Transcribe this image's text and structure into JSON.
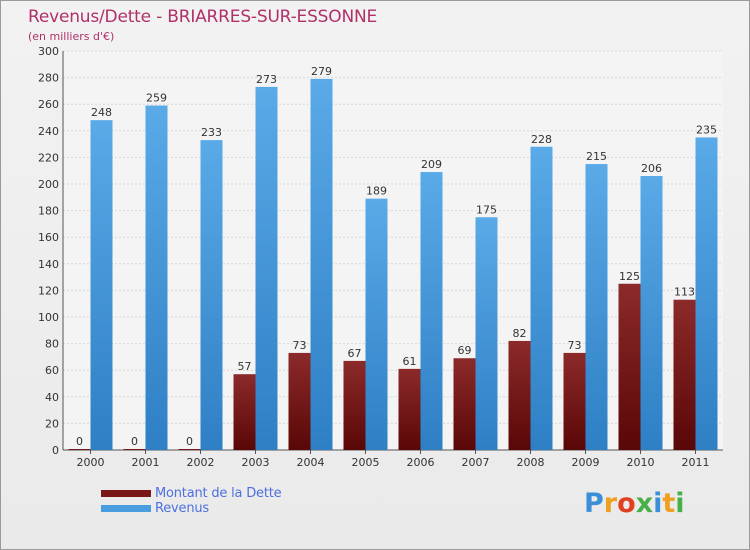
{
  "title": "Revenus/Dette - BRIARRES-SUR-ESSONNE",
  "subtitle": "(en milliers d'€)",
  "legend": {
    "debt_label": "Montant de la Dette",
    "revenue_label": "Revenus"
  },
  "logo": {
    "text": "Proxiti"
  },
  "colors": {
    "debt": "#7a1818",
    "revenue": "#4a9ee0",
    "title": "#b0306a",
    "legend_text": "#4d6fe0"
  },
  "chart_data": {
    "type": "bar",
    "title": "Revenus/Dette - BRIARRES-SUR-ESSONNE",
    "ylabel": "(en milliers d'€)",
    "xlabel": "",
    "categories": [
      "2000",
      "2001",
      "2002",
      "2003",
      "2004",
      "2005",
      "2006",
      "2007",
      "2008",
      "2009",
      "2010",
      "2011"
    ],
    "series": [
      {
        "name": "Montant de la Dette",
        "values": [
          0,
          0,
          0,
          57,
          73,
          67,
          61,
          69,
          82,
          73,
          125,
          113
        ]
      },
      {
        "name": "Revenus",
        "values": [
          248,
          259,
          233,
          273,
          279,
          189,
          209,
          175,
          228,
          215,
          206,
          235
        ]
      }
    ],
    "ylim": [
      0,
      300
    ],
    "yticks": [
      0,
      20,
      40,
      60,
      80,
      100,
      120,
      140,
      160,
      180,
      200,
      220,
      240,
      260,
      280,
      300
    ],
    "grid": true,
    "legend_position": "bottom-left"
  }
}
